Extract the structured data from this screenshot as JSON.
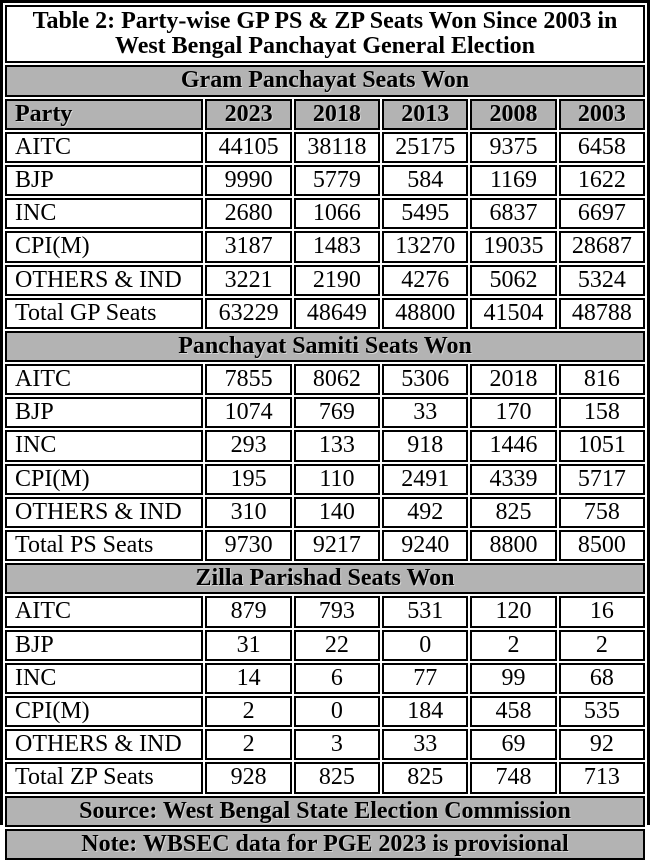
{
  "title": "Table 2: Party-wise GP PS & ZP Seats Won Since 2003 in West Bengal Panchayat General Election",
  "columns": [
    "Party",
    "2023",
    "2018",
    "2013",
    "2008",
    "2003"
  ],
  "sections": [
    {
      "header": "Gram Panchayat Seats Won",
      "rows": [
        [
          "AITC",
          "44105",
          "38118",
          "25175",
          "9375",
          "6458"
        ],
        [
          "BJP",
          "9990",
          "5779",
          "584",
          "1169",
          "1622"
        ],
        [
          "INC",
          "2680",
          "1066",
          "5495",
          "6837",
          "6697"
        ],
        [
          "CPI(M)",
          "3187",
          "1483",
          "13270",
          "19035",
          "28687"
        ],
        [
          "OTHERS & IND",
          "3221",
          "2190",
          "4276",
          "5062",
          "5324"
        ],
        [
          "Total GP Seats",
          "63229",
          "48649",
          "48800",
          "41504",
          "48788"
        ]
      ]
    },
    {
      "header": "Panchayat Samiti Seats Won",
      "rows": [
        [
          "AITC",
          "7855",
          "8062",
          "5306",
          "2018",
          "816"
        ],
        [
          "BJP",
          "1074",
          "769",
          "33",
          "170",
          "158"
        ],
        [
          "INC",
          "293",
          "133",
          "918",
          "1446",
          "1051"
        ],
        [
          "CPI(M)",
          "195",
          "110",
          "2491",
          "4339",
          "5717"
        ],
        [
          "OTHERS & IND",
          "310",
          "140",
          "492",
          "825",
          "758"
        ],
        [
          "Total PS Seats",
          "9730",
          "9217",
          "9240",
          "8800",
          "8500"
        ]
      ]
    },
    {
      "header": "Zilla Parishad Seats Won",
      "rows": [
        [
          "AITC",
          "879",
          "793",
          "531",
          "120",
          "16"
        ],
        [
          "BJP",
          "31",
          "22",
          "0",
          "2",
          "2"
        ],
        [
          "INC",
          "14",
          "6",
          "77",
          "99",
          "68"
        ],
        [
          "CPI(M)",
          "2",
          "0",
          "184",
          "458",
          "535"
        ],
        [
          "OTHERS & IND",
          "2",
          "3",
          "33",
          "69",
          "92"
        ],
        [
          "Total ZP Seats",
          "928",
          "825",
          "825",
          "748",
          "713"
        ]
      ]
    }
  ],
  "footer": {
    "source": "Source: West Bengal State Election Commission",
    "note": "Note: WBSEC data for PGE 2023 is provisional"
  },
  "colors": {
    "band_gray": "#b3b3b3",
    "border_black": "#000000",
    "row_white": "#ffffff"
  }
}
